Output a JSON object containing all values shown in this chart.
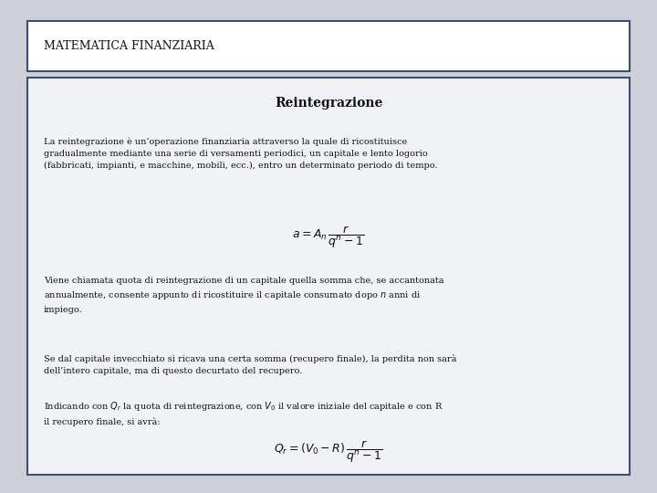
{
  "bg_color": "#cdd0d8",
  "header_box_facecolor": "#ffffff",
  "header_box_edgecolor": "#3a5070",
  "header_text": "MATEMATICA FINANZIARIA",
  "header_font_size": 9,
  "main_box_facecolor": "#f0f2f5",
  "main_box_edgecolor": "#3a5070",
  "title": "Reintegrazione",
  "title_font_size": 10,
  "para1": "La reintegrazione è un’operazione finanziaria attraverso la quale di ricostituisce\ngradualmente mediante una serie di versamenti periodici, un capitale e lento logorio\n(fabbricati, impianti, e macchine, mobili, ecc.), entro un determinato periodo di tempo.",
  "formula1": "$a = A_n\\,\\dfrac{r}{q^n - 1}$",
  "para2": "Viene chiamata quota di reintegrazione di un capitale quella somma che, se accantonata\nannualmente, consente appunto di ricostituire il capitale consumato dopo $n$ anni di\nimpiego.",
  "para3": "Se dal capitale invecchiato si ricava una certa somma (recupero finale), la perdita non sarà\ndell’intero capitale, ma di questo decurtato del recupero.",
  "para4": "Indicando con $Q_r$ la quota di reintegrazione, con $V_0$ il valore iniziale del capitale e con R\nil recupero finale, si avrà:",
  "formula2": "$Q_r = (V_0 - R)\\,\\dfrac{r}{q^n - 1}$",
  "text_font_size": 7.0,
  "formula_font_size": 9,
  "text_color": "#111111"
}
